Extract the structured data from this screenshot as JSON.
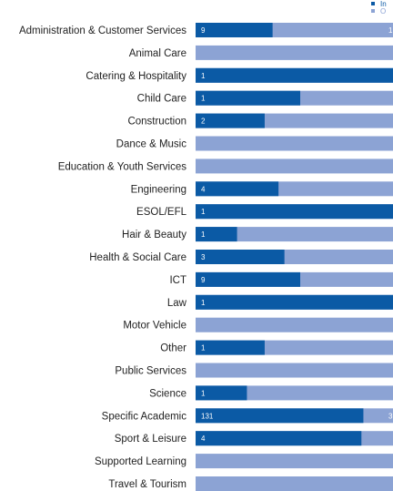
{
  "chart_data": {
    "type": "bar",
    "orientation": "horizontal",
    "stacked": "percent",
    "legend": "top-right",
    "series": [
      {
        "name": "In",
        "color": "#0b5aa5"
      },
      {
        "name": "O",
        "color": "#8ca3d4"
      }
    ],
    "categories": [
      {
        "label": "Administration & Customer Services",
        "primary_share": 0.39,
        "primary_value": "9",
        "secondary_value": "1"
      },
      {
        "label": "Animal Care",
        "primary_share": 0.0,
        "primary_value": "",
        "secondary_value": ""
      },
      {
        "label": "Catering & Hospitality",
        "primary_share": 1.0,
        "primary_value": "1",
        "secondary_value": ""
      },
      {
        "label": "Child Care",
        "primary_share": 0.53,
        "primary_value": "1",
        "secondary_value": ""
      },
      {
        "label": "Construction",
        "primary_share": 0.35,
        "primary_value": "2",
        "secondary_value": ""
      },
      {
        "label": "Dance & Music",
        "primary_share": 0.0,
        "primary_value": "",
        "secondary_value": ""
      },
      {
        "label": "Education & Youth Services",
        "primary_share": 0.0,
        "primary_value": "",
        "secondary_value": ""
      },
      {
        "label": "Engineering",
        "primary_share": 0.42,
        "primary_value": "4",
        "secondary_value": ""
      },
      {
        "label": "ESOL/EFL",
        "primary_share": 1.0,
        "primary_value": "1",
        "secondary_value": ""
      },
      {
        "label": "Hair & Beauty",
        "primary_share": 0.21,
        "primary_value": "1",
        "secondary_value": ""
      },
      {
        "label": "Health & Social Care",
        "primary_share": 0.45,
        "primary_value": "3",
        "secondary_value": ""
      },
      {
        "label": "ICT",
        "primary_share": 0.53,
        "primary_value": "9",
        "secondary_value": ""
      },
      {
        "label": "Law",
        "primary_share": 1.0,
        "primary_value": "1",
        "secondary_value": ""
      },
      {
        "label": "Motor Vehicle",
        "primary_share": 0.0,
        "primary_value": "",
        "secondary_value": ""
      },
      {
        "label": "Other",
        "primary_share": 0.35,
        "primary_value": "1",
        "secondary_value": ""
      },
      {
        "label": "Public Services",
        "primary_share": 0.0,
        "primary_value": "",
        "secondary_value": ""
      },
      {
        "label": "Science",
        "primary_share": 0.26,
        "primary_value": "1",
        "secondary_value": ""
      },
      {
        "label": "Specific Academic",
        "primary_share": 0.85,
        "primary_value": "131",
        "secondary_value": "3"
      },
      {
        "label": "Sport & Leisure",
        "primary_share": 0.84,
        "primary_value": "4",
        "secondary_value": ""
      },
      {
        "label": "Supported Learning",
        "primary_share": 0.0,
        "primary_value": "",
        "secondary_value": ""
      },
      {
        "label": "Travel & Tourism",
        "primary_share": 0.0,
        "primary_value": "",
        "secondary_value": ""
      }
    ]
  }
}
